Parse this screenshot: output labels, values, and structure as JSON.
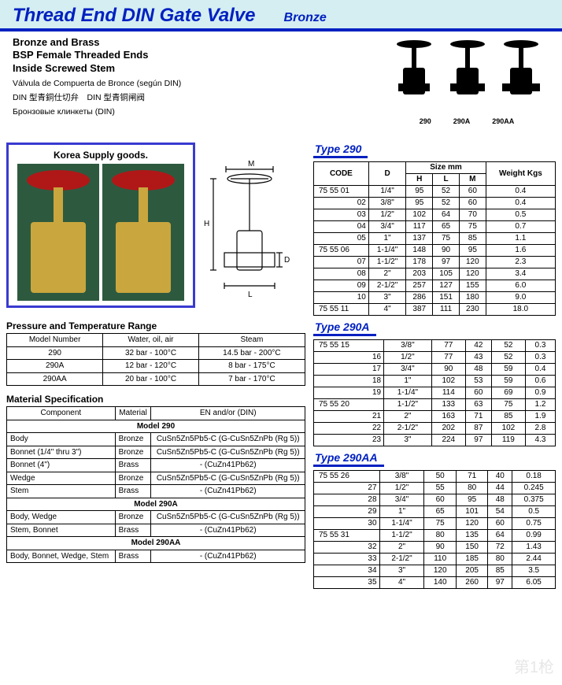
{
  "doc_colors": {
    "header_bg": "#d5eef2",
    "accent": "#0020c0",
    "border": "#000000",
    "valve_red": "#b01818",
    "valve_brass": "#caa63e",
    "photo_bg": "#2d5a3f"
  },
  "header": {
    "title": "Thread End DIN Gate Valve",
    "subtitle": "Bronze"
  },
  "intro": {
    "line1": "Bronze and Brass",
    "line2": "BSP Female Threaded Ends",
    "line3": "Inside Screwed Stem",
    "alt1": "Válvula de Compuerta de Bronce (según DIN)",
    "alt2": "DIN 型青銅仕切弁　DIN 型青铜闸阀",
    "alt3": "Бронзовые клинкеты (DIN)"
  },
  "photo_caption": "Korea Supply goods.",
  "top_valve_labels": [
    "290",
    "290A",
    "290AA"
  ],
  "diagram_dims": [
    "M",
    "H",
    "D",
    "L"
  ],
  "pressure": {
    "title": "Pressure and Temperature Range",
    "cols": [
      "Model Number",
      "Water, oil, air",
      "Steam"
    ],
    "rows": [
      [
        "290",
        "32 bar - 100°C",
        "14.5 bar - 200°C"
      ],
      [
        "290A",
        "12 bar - 120°C",
        "8 bar - 175°C"
      ],
      [
        "290AA",
        "20 bar - 100°C",
        "7 bar - 170°C"
      ]
    ]
  },
  "material": {
    "title": "Material Specification",
    "cols": [
      "Component",
      "Material",
      "EN and/or (DIN)"
    ],
    "groups": [
      {
        "name": "Model 290",
        "rows": [
          [
            "Body",
            "Bronze",
            "CuSn5Zn5Pb5-C (G-CuSn5ZnPb (Rg 5))"
          ],
          [
            "Bonnet (1/4\" thru 3\")",
            "Bronze",
            "CuSn5Zn5Pb5-C (G-CuSn5ZnPb (Rg 5))"
          ],
          [
            "Bonnet (4\")",
            "Brass",
            "- (CuZn41Pb62)"
          ],
          [
            "Wedge",
            "Bronze",
            "CuSn5Zn5Pb5-C (G-CuSn5ZnPb (Rg 5))"
          ],
          [
            "Stem",
            "Brass",
            "- (CuZn41Pb62)"
          ]
        ]
      },
      {
        "name": "Model 290A",
        "rows": [
          [
            "Body, Wedge",
            "Bronze",
            "CuSn5Zn5Pb5-C (G-CuSn5ZnPb (Rg 5))"
          ],
          [
            "Stem, Bonnet",
            "Brass",
            "- (CuZn41Pb62)"
          ]
        ]
      },
      {
        "name": "Model 290AA",
        "rows": [
          [
            "Body, Bonnet, Wedge, Stem",
            "Brass",
            "- (CuZn41Pb62)"
          ]
        ]
      }
    ]
  },
  "size_tables": [
    {
      "title": "Type 290",
      "cols": [
        "CODE",
        "D",
        "H",
        "L",
        "M",
        "Weight Kgs"
      ],
      "size_mm_label": "Size mm",
      "blocks": [
        [
          [
            "75 55 01",
            "1/4\"",
            "95",
            "52",
            "60",
            "0.4"
          ],
          [
            "02",
            "3/8\"",
            "95",
            "52",
            "60",
            "0.4"
          ],
          [
            "03",
            "1/2\"",
            "102",
            "64",
            "70",
            "0.5"
          ],
          [
            "04",
            "3/4\"",
            "117",
            "65",
            "75",
            "0.7"
          ],
          [
            "05",
            "1\"",
            "137",
            "75",
            "85",
            "1.1"
          ]
        ],
        [
          [
            "75 55 06",
            "1-1/4\"",
            "148",
            "90",
            "95",
            "1.6"
          ],
          [
            "07",
            "1-1/2\"",
            "178",
            "97",
            "120",
            "2.3"
          ],
          [
            "08",
            "2\"",
            "203",
            "105",
            "120",
            "3.4"
          ],
          [
            "09",
            "2-1/2\"",
            "257",
            "127",
            "155",
            "6.0"
          ],
          [
            "10",
            "3\"",
            "286",
            "151",
            "180",
            "9.0"
          ]
        ],
        [
          [
            "75 55 11",
            "4\"",
            "387",
            "111",
            "230",
            "18.0"
          ]
        ]
      ]
    },
    {
      "title": "Type 290A",
      "cols": [
        "CODE",
        "D",
        "H",
        "L",
        "M",
        "Weight Kgs"
      ],
      "blocks": [
        [
          [
            "75 55 15",
            "3/8\"",
            "77",
            "42",
            "52",
            "0.3"
          ],
          [
            "16",
            "1/2\"",
            "77",
            "43",
            "52",
            "0.3"
          ],
          [
            "17",
            "3/4\"",
            "90",
            "48",
            "59",
            "0.4"
          ],
          [
            "18",
            "1\"",
            "102",
            "53",
            "59",
            "0.6"
          ],
          [
            "19",
            "1-1/4\"",
            "114",
            "60",
            "69",
            "0.9"
          ]
        ],
        [
          [
            "75 55 20",
            "1-1/2\"",
            "133",
            "63",
            "75",
            "1.2"
          ],
          [
            "21",
            "2\"",
            "163",
            "71",
            "85",
            "1.9"
          ],
          [
            "22",
            "2-1/2\"",
            "202",
            "87",
            "102",
            "2.8"
          ],
          [
            "23",
            "3\"",
            "224",
            "97",
            "119",
            "4.3"
          ]
        ]
      ]
    },
    {
      "title": "Type 290AA",
      "cols": [
        "CODE",
        "D",
        "H",
        "L",
        "M",
        "Weight Kgs"
      ],
      "blocks": [
        [
          [
            "75 55 26",
            "3/8\"",
            "50",
            "71",
            "40",
            "0.18"
          ],
          [
            "27",
            "1/2\"",
            "55",
            "80",
            "44",
            "0.245"
          ],
          [
            "28",
            "3/4\"",
            "60",
            "95",
            "48",
            "0.375"
          ],
          [
            "29",
            "1\"",
            "65",
            "101",
            "54",
            "0.5"
          ],
          [
            "30",
            "1-1/4\"",
            "75",
            "120",
            "60",
            "0.75"
          ]
        ],
        [
          [
            "75 55 31",
            "1-1/2\"",
            "80",
            "135",
            "64",
            "0.99"
          ],
          [
            "32",
            "2\"",
            "90",
            "150",
            "72",
            "1.43"
          ],
          [
            "33",
            "2-1/2\"",
            "110",
            "185",
            "80",
            "2.44"
          ],
          [
            "34",
            "3\"",
            "120",
            "205",
            "85",
            "3.5"
          ],
          [
            "35",
            "4\"",
            "140",
            "260",
            "97",
            "6.05"
          ]
        ]
      ]
    }
  ],
  "watermark": "第1枪"
}
